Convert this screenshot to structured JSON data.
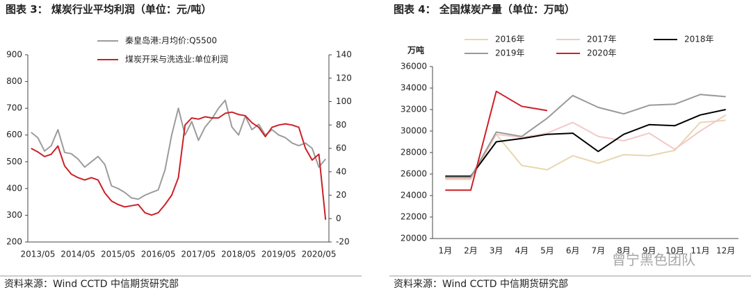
{
  "chart_data": [
    {
      "type": "line",
      "title": "图表 3：  煤炭行业平均利润（单位：元/吨）",
      "source": "资料来源：Wind CCTD 中信期货研究部",
      "categories": [
        null,
        "2013/05",
        null,
        null,
        null,
        null,
        null,
        "2014/05",
        null,
        null,
        null,
        null,
        null,
        "2015/05",
        null,
        null,
        null,
        null,
        null,
        "2016/05",
        null,
        null,
        null,
        null,
        null,
        "2017/05",
        null,
        null,
        null,
        null,
        null,
        "2018/05",
        null,
        null,
        null,
        null,
        null,
        "2019/05",
        null,
        null,
        null,
        null,
        null,
        "2020/05",
        null
      ],
      "ylim": [
        200,
        900
      ],
      "yticks": [
        200,
        300,
        400,
        500,
        600,
        700,
        800,
        900
      ],
      "y2lim": [
        -20,
        140
      ],
      "y2ticks": [
        -20,
        0,
        20,
        40,
        60,
        80,
        100,
        120,
        140
      ],
      "series": [
        {
          "name": "秦皇岛港:月均价:Q5500",
          "color": "#9b9b9b",
          "values": [
            610,
            590,
            540,
            560,
            620,
            535,
            530,
            510,
            480,
            500,
            520,
            490,
            410,
            400,
            385,
            365,
            360,
            375,
            385,
            395,
            470,
            600,
            700,
            600,
            650,
            580,
            630,
            660,
            700,
            730,
            630,
            600,
            670,
            620,
            640,
            600,
            620,
            600,
            590,
            570,
            560,
            570,
            550,
            480,
            510
          ]
        },
        {
          "name": "煤炭开采与洗选业:单位利润",
          "color": "#cc1f26",
          "axis": "y2",
          "values": [
            60,
            57,
            53,
            55,
            62,
            45,
            38,
            35,
            33,
            35,
            33,
            22,
            15,
            12,
            10,
            11,
            12,
            5,
            3,
            5,
            12,
            20,
            35,
            80,
            86,
            85,
            87,
            86,
            86,
            90,
            91,
            89,
            88,
            82,
            78,
            70,
            78,
            80,
            81,
            80,
            78,
            60,
            50,
            55,
            -1
          ]
        }
      ]
    },
    {
      "type": "line",
      "title": "图表 4：  全国煤炭产量（单位：万吨）",
      "source": "资料来源：Wind CCTD 中信期货研究部",
      "ylabel": "万吨",
      "categories": [
        "1月",
        "2月",
        "3月",
        "4月",
        "5月",
        "6月",
        "7月",
        "8月",
        "9月",
        "10月",
        "11月",
        "12月"
      ],
      "ylim": [
        20000,
        36000
      ],
      "yticks": [
        20000,
        22000,
        24000,
        26000,
        28000,
        30000,
        32000,
        34000,
        36000
      ],
      "series": [
        {
          "name": "2016年",
          "color": "#e6d7ae",
          "values": [
            25500,
            25500,
            29700,
            26800,
            26400,
            27700,
            27000,
            27800,
            27700,
            28200,
            30800,
            31000
          ]
        },
        {
          "name": "2017年",
          "color": "#f3c8c8",
          "values": [
            25600,
            25600,
            29700,
            29400,
            29800,
            30800,
            29500,
            29100,
            29800,
            28300,
            30000,
            31500
          ]
        },
        {
          "name": "2018年",
          "color": "#000000",
          "values": [
            25800,
            25800,
            29000,
            29300,
            29700,
            29800,
            28100,
            29700,
            30600,
            30500,
            31500,
            32000
          ]
        },
        {
          "name": "2019年",
          "color": "#999999",
          "values": [
            25700,
            25700,
            29900,
            29500,
            31200,
            33300,
            32200,
            31600,
            32400,
            32500,
            33400,
            33200
          ]
        },
        {
          "name": "2020年",
          "color": "#cc1f26",
          "values": [
            24500,
            24500,
            33700,
            32300,
            31900,
            null,
            null,
            null,
            null,
            null,
            null,
            null
          ]
        }
      ]
    }
  ],
  "watermark": "曾宁黑色团队"
}
